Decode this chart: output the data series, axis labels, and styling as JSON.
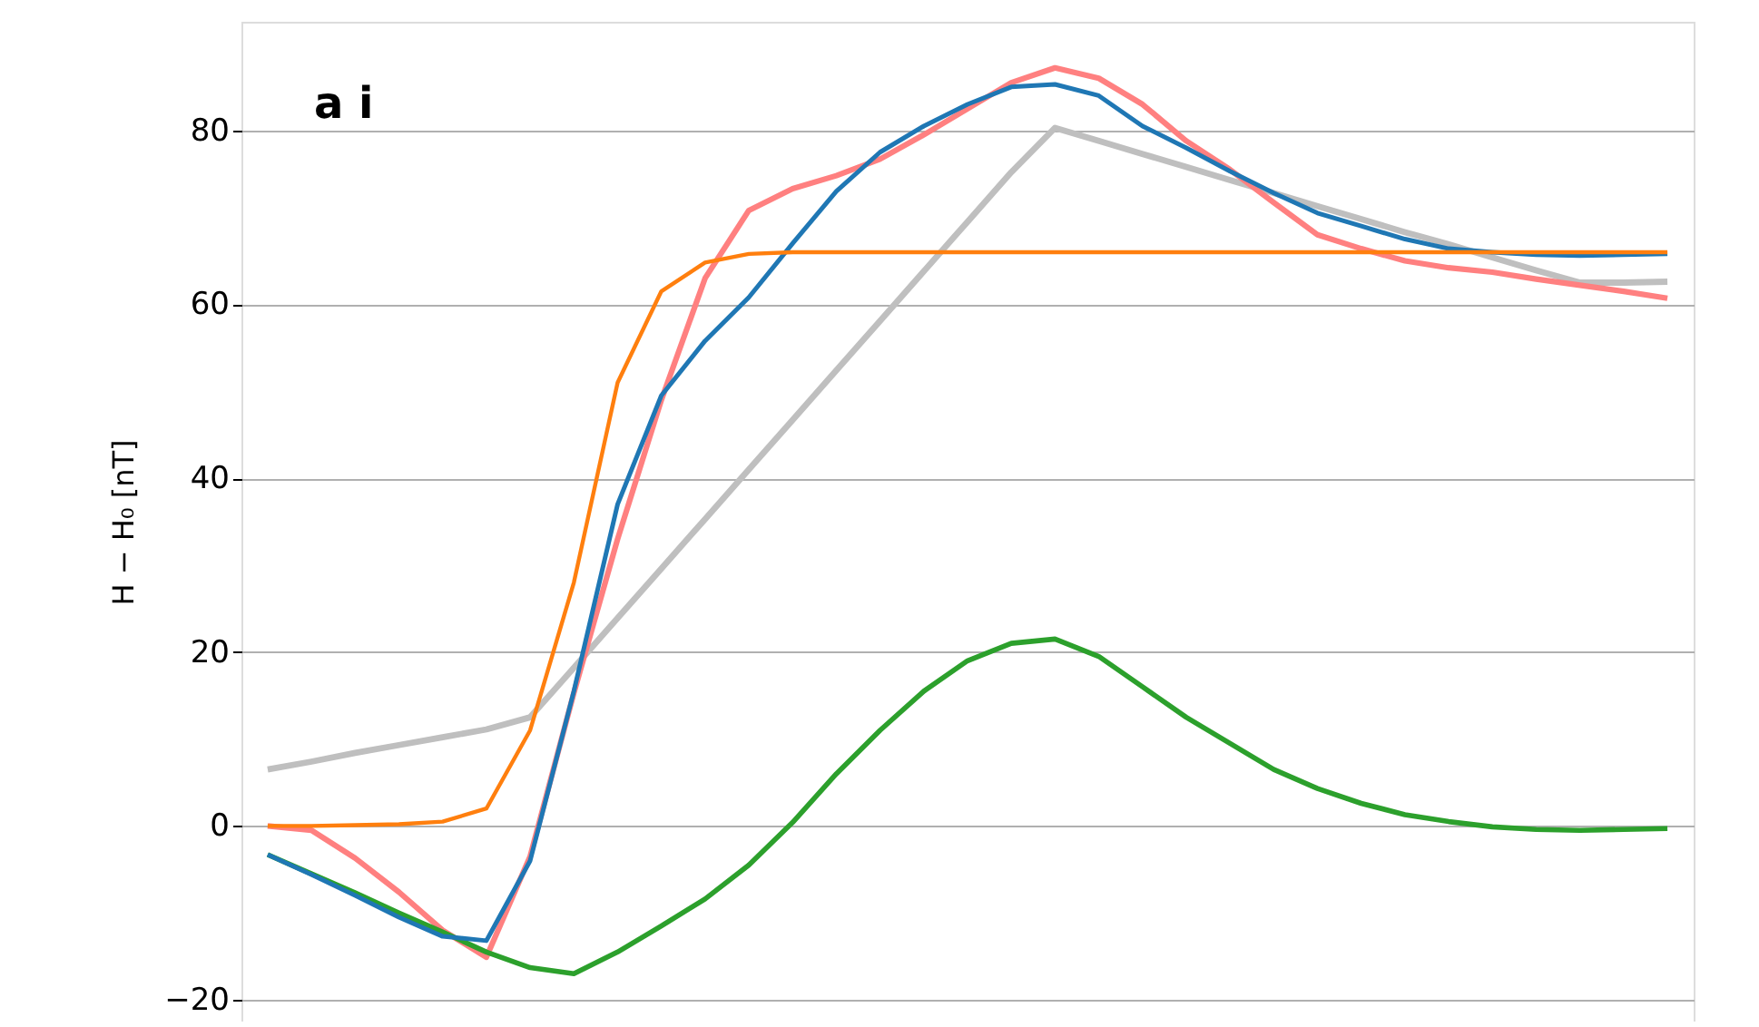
{
  "chart_data": {
    "type": "line",
    "ylabel": "H − H₀ [nT]",
    "annotations": [
      "a i"
    ],
    "categories": [
      null,
      null,
      null,
      null,
      null,
      null,
      null,
      null,
      null,
      null,
      null,
      null,
      null,
      null,
      null,
      null,
      null,
      null,
      null,
      null,
      null,
      null,
      null,
      null,
      null,
      null,
      null,
      null,
      null,
      null,
      null,
      null,
      null
    ],
    "ylim": [
      -22.5,
      92.5
    ],
    "yticks": [
      {
        "value": -20,
        "label": "−20"
      },
      0,
      20,
      40,
      60,
      80
    ],
    "grid": "y",
    "tick_labels": "y",
    "series": [
      {
        "color": "#bfbfbf",
        "values": [
          6.5,
          7.4,
          8.4,
          9.3,
          10.2,
          11.1,
          12.5,
          18.2,
          23.9,
          29.6,
          35.3,
          41,
          46.7,
          52.4,
          58.1,
          63.8,
          69.5,
          75.2,
          80.3,
          78.8,
          77.3,
          75.8,
          74.3,
          72.8,
          71.3,
          69.8,
          68.3,
          66.9,
          65.4,
          63.9,
          62.5,
          62.5,
          62.6
        ]
      },
      {
        "color": "#ff8080",
        "values": [
          0,
          -0.5,
          -3.7,
          -7.6,
          -12,
          -15.1,
          -3.5,
          15.3,
          33,
          49,
          63,
          70.8,
          73.3,
          74.8,
          76.7,
          79.5,
          82.5,
          85.5,
          87.2,
          86,
          83,
          78.8,
          75.5,
          71.7,
          68,
          66.4,
          65,
          64.2,
          63.7,
          62.9,
          62.2,
          61.5,
          60.7
        ]
      },
      {
        "color": "#2ca02c",
        "values": [
          -3.3,
          -5.5,
          -7.7,
          -10,
          -12.2,
          -14.5,
          -16.3,
          -17,
          -14.5,
          -11.5,
          -8.4,
          -4.5,
          0.4,
          6,
          11,
          15.5,
          19,
          21,
          21.5,
          19.5,
          16,
          12.5,
          9.5,
          6.5,
          4.3,
          2.6,
          1.3,
          0.5,
          -0.1,
          -0.4,
          -0.5,
          -0.4,
          -0.3
        ]
      },
      {
        "color": "#1f77b4",
        "values": [
          -3.3,
          -5.6,
          -8,
          -10.5,
          -12.7,
          -13.2,
          -4,
          15.5,
          37,
          49.5,
          55.8,
          60.8,
          67,
          73,
          77.5,
          80.5,
          83,
          85,
          85.3,
          84,
          80.5,
          78,
          75.3,
          72.8,
          70.5,
          69,
          67.5,
          66.4,
          66,
          65.7,
          65.6,
          65.7,
          65.8
        ]
      },
      {
        "color": "#ff7f0e",
        "values": [
          0,
          0,
          0.1,
          0.2,
          0.5,
          2,
          11,
          28,
          51,
          61.5,
          64.8,
          65.8,
          66,
          66,
          66,
          66,
          66,
          66,
          66,
          66,
          66,
          66,
          66,
          66,
          66,
          66,
          66,
          66,
          66,
          66,
          66,
          66,
          66
        ]
      }
    ]
  }
}
